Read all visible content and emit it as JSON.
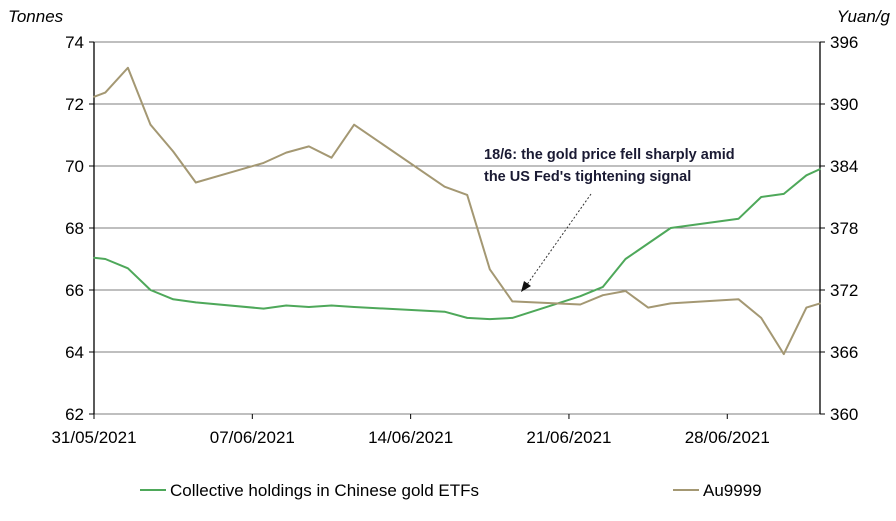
{
  "chart_data": {
    "type": "line",
    "title": "",
    "left_axis": {
      "label": "Tonnes",
      "ylim": [
        62,
        74
      ],
      "ticks": [
        "62",
        "64",
        "66",
        "68",
        "70",
        "72",
        "74"
      ]
    },
    "right_axis": {
      "label": "Yuan/g",
      "ylim": [
        360,
        396
      ],
      "ticks": [
        "360",
        "366",
        "372",
        "378",
        "384",
        "390",
        "396"
      ]
    },
    "x_unit": "days since 31/05/2021",
    "xlim": [
      0,
      32.1
    ],
    "x_ticks": [
      {
        "label": "31/05/2021",
        "day": 0
      },
      {
        "label": "07/06/2021",
        "day": 7
      },
      {
        "label": "14/06/2021",
        "day": 14
      },
      {
        "label": "21/06/2021",
        "day": 21
      },
      {
        "label": "28/06/2021",
        "day": 28
      }
    ],
    "grid": true,
    "legend_position": "bottom",
    "x": [
      0,
      0.5,
      1.5,
      2.5,
      3.5,
      4.5,
      7.5,
      8.5,
      9.5,
      10.5,
      11.5,
      15.5,
      16.5,
      17.5,
      18.5,
      21.5,
      22.5,
      23.5,
      24.5,
      25.5,
      28.5,
      29.5,
      30.5,
      31.5,
      32.1
    ],
    "series": [
      {
        "name": "Collective holdings in Chinese gold ETFs",
        "axis": "left",
        "color": "#4ea85a",
        "values": [
          67.04,
          67.0,
          66.7,
          66.0,
          65.7,
          65.6,
          65.4,
          65.5,
          65.45,
          65.5,
          65.45,
          65.3,
          65.1,
          65.06,
          65.1,
          65.8,
          66.1,
          67.0,
          67.5,
          68.0,
          68.3,
          69.0,
          69.1,
          69.7,
          69.9
        ]
      },
      {
        "name": "Au9999",
        "axis": "right",
        "color": "#a49873",
        "values": [
          390.7,
          391.1,
          393.5,
          388.0,
          385.4,
          382.4,
          384.3,
          385.3,
          385.9,
          384.8,
          388.0,
          382.0,
          381.2,
          374.0,
          370.9,
          370.6,
          371.5,
          371.9,
          370.3,
          370.7,
          371.1,
          369.3,
          365.8,
          370.3,
          370.7
        ]
      }
    ],
    "annotation": {
      "lines": [
        "18/6: the gold price fell sharply amid",
        "the US Fed's tightening signal"
      ],
      "target_day": 18.5
    }
  }
}
